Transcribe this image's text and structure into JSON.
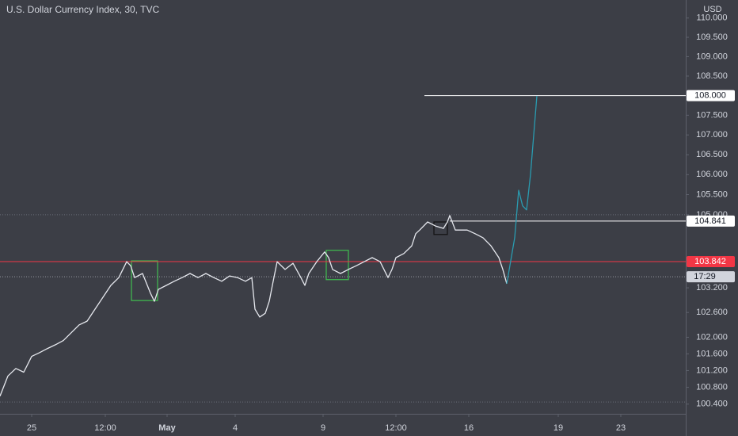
{
  "chart_data": {
    "type": "line",
    "title": "U.S. Dollar Currency Index, 30, TVC",
    "y_unit": "USD",
    "log_scale": true,
    "xlim": [
      0,
      433
    ],
    "ylim": [
      100.17,
      110.47
    ],
    "xticks": [
      {
        "value": 20,
        "label": "25"
      },
      {
        "value": 66.5,
        "label": "12:00"
      },
      {
        "value": 105.5,
        "label": "May"
      },
      {
        "value": 148.5,
        "label": "4"
      },
      {
        "value": 204,
        "label": "9"
      },
      {
        "value": 250,
        "label": "12:00"
      },
      {
        "value": 296,
        "label": "16"
      },
      {
        "value": 352.5,
        "label": "19"
      },
      {
        "value": 392,
        "label": "23"
      }
    ],
    "yticks": [
      {
        "value": 110,
        "label": "110.000"
      },
      {
        "value": 109.5,
        "label": "109.500"
      },
      {
        "value": 109,
        "label": "109.000"
      },
      {
        "value": 108.5,
        "label": "108.500"
      },
      {
        "value": 107.5,
        "label": "107.500"
      },
      {
        "value": 107,
        "label": "107.000"
      },
      {
        "value": 106.5,
        "label": "106.500"
      },
      {
        "value": 106,
        "label": "106.000"
      },
      {
        "value": 105.5,
        "label": "105.500"
      },
      {
        "value": 105,
        "label": "105.000"
      },
      {
        "value": 103.2,
        "label": "103.200"
      },
      {
        "value": 102.6,
        "label": "102.600"
      },
      {
        "value": 102,
        "label": "102.000"
      },
      {
        "value": 101.6,
        "label": "101.600"
      },
      {
        "value": 101.2,
        "label": "101.200"
      },
      {
        "value": 100.8,
        "label": "100.800"
      },
      {
        "value": 100.4,
        "label": "100.400"
      }
    ],
    "series": [
      {
        "color": "#e6e8ee",
        "x": [
          0,
          5,
          10,
          15,
          20,
          25,
          30,
          35,
          40,
          45,
          50,
          55,
          60,
          65,
          70,
          75,
          80,
          82.5,
          85,
          90,
          95,
          97.5,
          100,
          105,
          110,
          115,
          120,
          125,
          130,
          135,
          140,
          145,
          150,
          155,
          159,
          161,
          164,
          167.5,
          170,
          172.5,
          175,
          180,
          185,
          190,
          192.5,
          195,
          200,
          205,
          207.5,
          210,
          215,
          220,
          225,
          230,
          235,
          240,
          245,
          247.5,
          250,
          255,
          260,
          262.5,
          265,
          270,
          275,
          280,
          282.5,
          284,
          287.5,
          295,
          300,
          305,
          310,
          315,
          317.5,
          320
        ],
        "values": [
          100.59,
          101.07,
          101.25,
          101.16,
          101.54,
          101.63,
          101.73,
          101.82,
          101.92,
          102.11,
          102.3,
          102.39,
          102.68,
          102.97,
          103.26,
          103.45,
          103.84,
          103.74,
          103.45,
          103.55,
          103.07,
          102.87,
          103.16,
          103.26,
          103.36,
          103.45,
          103.55,
          103.45,
          103.55,
          103.45,
          103.36,
          103.49,
          103.45,
          103.36,
          103.45,
          102.68,
          102.49,
          102.58,
          102.87,
          103.36,
          103.84,
          103.65,
          103.8,
          103.45,
          103.26,
          103.55,
          103.84,
          104.08,
          103.94,
          103.65,
          103.55,
          103.65,
          103.74,
          103.84,
          103.94,
          103.84,
          103.45,
          103.65,
          103.94,
          104.04,
          104.23,
          104.53,
          104.62,
          104.82,
          104.72,
          104.66,
          104.82,
          104.98,
          104.62,
          104.62,
          104.53,
          104.43,
          104.23,
          103.94,
          103.65,
          103.3
        ]
      },
      {
        "color": "#2a9bb0",
        "x": [
          320,
          325,
          327.5,
          330,
          332.5,
          335,
          339
        ],
        "values": [
          103.3,
          104.43,
          105.61,
          105.22,
          105.12,
          106.01,
          107.99
        ]
      }
    ],
    "levels": [
      {
        "value": 108,
        "label": "108.000",
        "from": 268,
        "color": "#ffffff",
        "label_bg": "#ffffff",
        "label_color": "#131722"
      },
      {
        "value": 104.841,
        "from": 284,
        "color": "#ffffff",
        "label_bg": "#ffffff",
        "label_color": "#131722"
      },
      {
        "value": 103.842,
        "from": 0,
        "color": "#f23645",
        "label_bg": "#f23645",
        "label_color": "#ffffff"
      }
    ],
    "dotted_levels": [
      105.0,
      100.45
    ],
    "current": {
      "value": 103.47,
      "countdown": "17:29"
    },
    "boxes": [
      {
        "x": [
          83,
          99.5
        ],
        "y": [
          102.89,
          103.86
        ],
        "color": "#3fbf4f"
      },
      {
        "x": [
          206,
          220
        ],
        "y": [
          103.4,
          104.12
        ],
        "color": "#3fbf4f"
      },
      {
        "x": [
          274,
          282.5
        ],
        "y": [
          104.51,
          104.82
        ],
        "color": "#111111"
      }
    ]
  }
}
